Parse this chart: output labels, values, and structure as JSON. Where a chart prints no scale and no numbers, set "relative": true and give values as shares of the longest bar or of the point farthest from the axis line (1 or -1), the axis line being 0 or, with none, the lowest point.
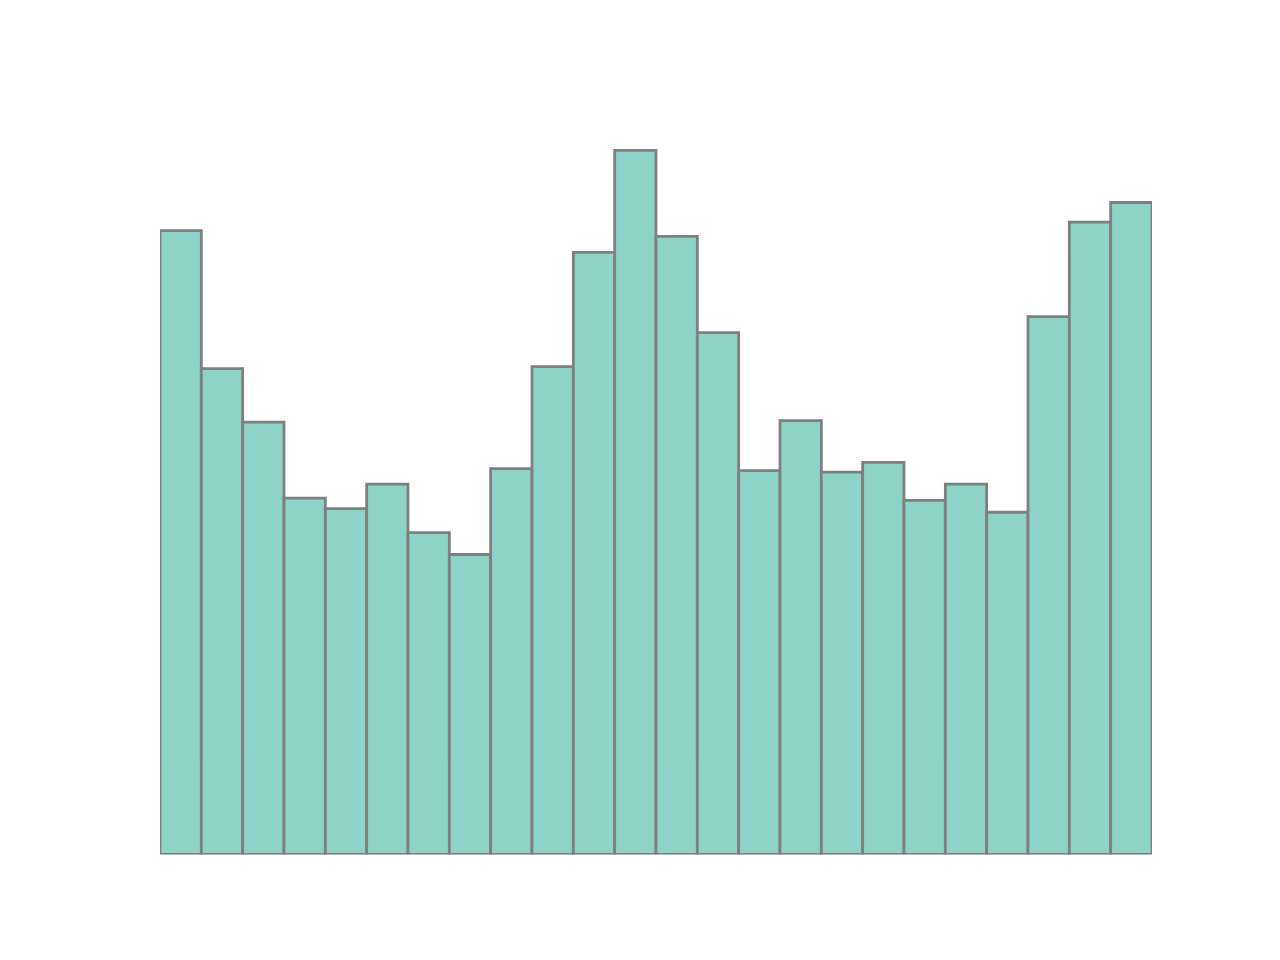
{
  "chart_data": {
    "type": "bar",
    "relative": true,
    "color": "#8dd3c7",
    "categories": [
      null,
      null,
      null,
      null,
      null,
      null,
      null,
      null,
      null,
      null,
      null,
      null,
      null,
      null,
      null,
      null,
      null,
      null,
      null,
      null,
      null,
      null,
      null,
      null
    ],
    "values": [
      0.886,
      0.69,
      0.614,
      0.506,
      0.491,
      0.526,
      0.457,
      0.426,
      0.548,
      0.693,
      0.855,
      1,
      0.878,
      0.741,
      0.545,
      0.616,
      0.543,
      0.557,
      0.503,
      0.526,
      0.486,
      0.764,
      0.898,
      0.926
    ],
    "data_labels": false
  }
}
